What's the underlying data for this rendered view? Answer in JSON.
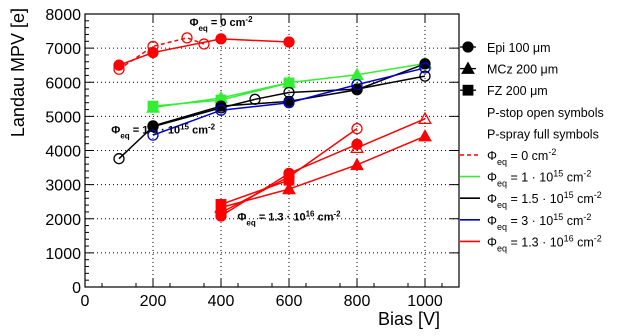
{
  "chart_data": {
    "type": "scatter",
    "title": "",
    "xlabel": "Bias [V]",
    "ylabel": "Landau MPV [e]",
    "xlim": [
      0,
      1100
    ],
    "ylim": [
      0,
      8000
    ],
    "x_ticks": [
      0,
      200,
      400,
      600,
      800,
      1000
    ],
    "y_ticks": [
      0,
      1000,
      2000,
      3000,
      4000,
      5000,
      6000,
      7000,
      8000
    ],
    "grid": true,
    "legend_position": "right",
    "legend": {
      "markers": [
        {
          "shape": "circle",
          "label": "Epi 100 μm"
        },
        {
          "shape": "triangle",
          "label": "MCz 200 μm"
        },
        {
          "shape": "square",
          "label": "FZ 200 μm"
        }
      ],
      "notes": [
        "P-stop open symbols",
        "P-spray full symbols"
      ],
      "lines": [
        {
          "label": "Φeq = 0 cm⁻²",
          "color": "#ff0000",
          "dashed": true
        },
        {
          "label": "Φeq = 1 · 10¹⁵ cm⁻²",
          "color": "#33ee33",
          "dashed": false
        },
        {
          "label": "Φeq = 1.5 · 10¹⁵ cm⁻²",
          "color": "#000000",
          "dashed": false
        },
        {
          "label": "Φeq = 3 · 10¹⁵ cm⁻²",
          "color": "#0000cc",
          "dashed": false
        },
        {
          "label": "Φeq = 1.3 · 10¹⁶ cm⁻²",
          "color": "#ff0000",
          "dashed": false
        }
      ]
    },
    "annotations": [
      {
        "text": "Φeq = 0 cm⁻²",
        "at": [
          400,
          7650
        ]
      },
      {
        "text": "Φeq = 1-3 · 10¹⁵ cm⁻²",
        "at": [
          230,
          4500
        ]
      },
      {
        "text": "Φeq = 1.3 · 10¹⁶ cm⁻²",
        "at": [
          600,
          1950
        ]
      }
    ],
    "series": [
      {
        "fluence": "0",
        "material": "Epi 100 μm",
        "isolation": "p-spray",
        "marker": "circle",
        "filled": true,
        "color": "#ff0000",
        "dashed": false,
        "x": [
          100,
          200,
          400,
          600
        ],
        "y": [
          6500,
          6870,
          7270,
          7180
        ]
      },
      {
        "fluence": "0",
        "material": "Epi 100 μm",
        "isolation": "p-stop",
        "marker": "circle",
        "filled": false,
        "color": "#ff0000",
        "dashed": true,
        "x": [
          100,
          200,
          300,
          350
        ],
        "y": [
          6380,
          7050,
          7300,
          7120
        ]
      },
      {
        "fluence": "1e15",
        "material": "MCz 200 μm",
        "isolation": "p-spray",
        "marker": "triangle",
        "filled": true,
        "color": "#33ee33",
        "dashed": false,
        "x": [
          200,
          400,
          600,
          800,
          1000
        ],
        "y": [
          5260,
          5540,
          5990,
          6220,
          6550
        ]
      },
      {
        "fluence": "1e15",
        "material": "FZ 200 μm",
        "isolation": "p-spray",
        "marker": "square",
        "filled": true,
        "color": "#33ee33",
        "dashed": false,
        "x": [
          200,
          400,
          600
        ],
        "y": [
          5300,
          5480,
          5980
        ]
      },
      {
        "fluence": "1.5e15",
        "material": "Epi 100 μm",
        "isolation": "p-spray",
        "marker": "circle",
        "filled": true,
        "color": "#000000",
        "dashed": false,
        "x": [
          200,
          400,
          600,
          800,
          1000
        ],
        "y": [
          4720,
          5300,
          5440,
          5780,
          6540
        ]
      },
      {
        "fluence": "1.5e15",
        "material": "Epi 100 μm",
        "isolation": "p-stop",
        "marker": "circle",
        "filled": false,
        "color": "#000000",
        "dashed": false,
        "x": [
          100,
          200,
          400,
          500,
          600,
          800,
          1000
        ],
        "y": [
          3760,
          4700,
          5250,
          5500,
          5700,
          5800,
          6180
        ]
      },
      {
        "fluence": "3e15",
        "material": "FZ 200 μm",
        "isolation": "p-spray",
        "marker": "circle",
        "filled": false,
        "color": "#0000cc",
        "dashed": false,
        "x": [
          200,
          400,
          600,
          800,
          1000
        ],
        "y": [
          4450,
          5180,
          5400,
          5930,
          6420
        ]
      },
      {
        "fluence": "1.3e16",
        "material": "Epi 100 μm",
        "isolation": "p-spray",
        "marker": "circle",
        "filled": true,
        "color": "#ff0000",
        "dashed": false,
        "x": [
          400,
          600,
          800
        ],
        "y": [
          2080,
          3330,
          4180
        ]
      },
      {
        "fluence": "1.3e16",
        "material": "Epi 100 μm",
        "isolation": "p-stop",
        "marker": "circle",
        "filled": false,
        "color": "#ff0000",
        "dashed": false,
        "x": [
          400,
          600,
          800
        ],
        "y": [
          2180,
          3230,
          4640
        ]
      },
      {
        "fluence": "1.3e16",
        "material": "MCz 200 μm",
        "isolation": "p-spray",
        "marker": "triangle",
        "filled": true,
        "color": "#ff0000",
        "dashed": false,
        "x": [
          400,
          600,
          800,
          1000
        ],
        "y": [
          2330,
          2870,
          3580,
          4420
        ]
      },
      {
        "fluence": "1.3e16",
        "material": "MCz 200 μm",
        "isolation": "p-stop",
        "marker": "triangle",
        "filled": false,
        "color": "#ff0000",
        "dashed": false,
        "x": [
          800,
          1000
        ],
        "y": [
          4080,
          4930
        ]
      },
      {
        "fluence": "1.3e16",
        "material": "FZ 200 μm",
        "isolation": "p-spray",
        "marker": "square",
        "filled": true,
        "color": "#ff0000",
        "dashed": false,
        "x": [
          400,
          600
        ],
        "y": [
          2420,
          3130
        ]
      }
    ]
  }
}
